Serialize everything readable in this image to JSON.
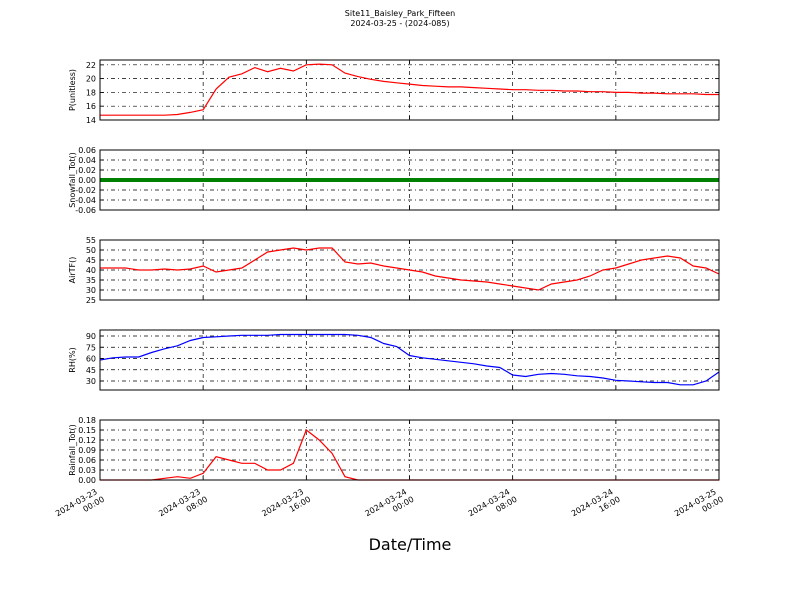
{
  "title": "Site11_Baisley_Park_Fifteen",
  "subtitle": "2024-03-25 - (2024-085)",
  "xlabel": "Date/Time",
  "xlim": [
    "2024-03-23 00:00",
    "2024-03-25 00:00"
  ],
  "xticks": [
    "2024-03-23 00:00",
    "2024-03-23 08:00",
    "2024-03-23 16:00",
    "2024-03-24 00:00",
    "2024-03-24 08:00",
    "2024-03-24 16:00",
    "2024-03-25 00:00"
  ],
  "grid": true,
  "x": [
    "2024-03-23 00:00",
    "2024-03-23 01:00",
    "2024-03-23 02:00",
    "2024-03-23 03:00",
    "2024-03-23 04:00",
    "2024-03-23 05:00",
    "2024-03-23 06:00",
    "2024-03-23 07:00",
    "2024-03-23 08:00",
    "2024-03-23 09:00",
    "2024-03-23 10:00",
    "2024-03-23 11:00",
    "2024-03-23 12:00",
    "2024-03-23 13:00",
    "2024-03-23 14:00",
    "2024-03-23 15:00",
    "2024-03-23 16:00",
    "2024-03-23 17:00",
    "2024-03-23 18:00",
    "2024-03-23 19:00",
    "2024-03-23 20:00",
    "2024-03-23 21:00",
    "2024-03-23 22:00",
    "2024-03-23 23:00",
    "2024-03-24 00:00",
    "2024-03-24 01:00",
    "2024-03-24 02:00",
    "2024-03-24 03:00",
    "2024-03-24 04:00",
    "2024-03-24 05:00",
    "2024-03-24 06:00",
    "2024-03-24 07:00",
    "2024-03-24 08:00",
    "2024-03-24 09:00",
    "2024-03-24 10:00",
    "2024-03-24 11:00",
    "2024-03-24 12:00",
    "2024-03-24 13:00",
    "2024-03-24 14:00",
    "2024-03-24 15:00",
    "2024-03-24 16:00",
    "2024-03-24 17:00",
    "2024-03-24 18:00",
    "2024-03-24 19:00",
    "2024-03-24 20:00",
    "2024-03-24 21:00",
    "2024-03-24 22:00",
    "2024-03-24 23:00",
    "2024-03-25 00:00"
  ],
  "chart_data": [
    {
      "type": "line",
      "ylabel": "P(unitless)",
      "ylim": [
        14,
        22.7
      ],
      "yticks": [
        14,
        16,
        18,
        20,
        22
      ],
      "series": [
        {
          "color": "#ff0000",
          "values": [
            14.7,
            14.7,
            14.7,
            14.7,
            14.7,
            14.7,
            14.8,
            15.1,
            15.5,
            18.5,
            20.2,
            20.7,
            21.6,
            21.0,
            21.5,
            21.1,
            22.0,
            22.1,
            22.0,
            20.8,
            20.3,
            19.9,
            19.6,
            19.4,
            19.2,
            19.0,
            18.9,
            18.8,
            18.8,
            18.7,
            18.6,
            18.5,
            18.4,
            18.4,
            18.3,
            18.3,
            18.2,
            18.2,
            18.1,
            18.1,
            18.0,
            18.0,
            17.9,
            17.9,
            17.8,
            17.8,
            17.8,
            17.7,
            17.7
          ]
        }
      ]
    },
    {
      "type": "line",
      "ylabel": "Snowfall_Tot()",
      "ylim": [
        -0.06,
        0.06
      ],
      "yticks": [
        -0.06,
        -0.04,
        -0.02,
        {
          "value": 0,
          "label": "0.00"
        },
        0.02,
        0.04,
        0.06
      ],
      "series": [
        {
          "color": "#008000",
          "values": [
            0,
            0,
            0,
            0,
            0,
            0,
            0,
            0,
            0,
            0,
            0,
            0,
            0,
            0,
            0,
            0,
            0,
            0,
            0,
            0,
            0,
            0,
            0,
            0,
            0,
            0,
            0,
            0,
            0,
            0,
            0,
            0,
            0,
            0,
            0,
            0,
            0,
            0,
            0,
            0,
            0,
            0,
            0,
            0,
            0,
            0,
            0,
            0,
            0
          ]
        }
      ]
    },
    {
      "type": "line",
      "ylabel": "AirTF()",
      "ylim": [
        25,
        55
      ],
      "yticks": [
        25,
        30,
        35,
        40,
        45,
        50,
        55
      ],
      "series": [
        {
          "color": "#ff0000",
          "values": [
            41,
            41,
            41,
            40,
            40,
            40.5,
            40,
            40.5,
            42,
            39,
            40,
            41,
            45,
            49,
            50,
            51,
            50,
            51,
            51,
            44,
            43,
            43.5,
            42,
            41,
            40,
            39,
            37,
            36,
            35,
            34.5,
            34,
            33,
            32,
            31,
            30,
            33,
            34,
            35,
            37,
            40,
            41,
            43,
            45,
            46,
            47,
            46,
            42,
            41,
            38
          ]
        }
      ]
    },
    {
      "type": "line",
      "ylabel": "RH(%)",
      "ylim": [
        18,
        98
      ],
      "yticks": [
        30,
        45,
        60,
        75,
        90
      ],
      "series": [
        {
          "color": "#0000ff",
          "values": [
            58,
            61,
            62,
            62,
            68,
            73,
            77,
            84,
            88,
            89,
            90,
            91,
            91,
            91,
            92,
            92,
            92,
            92,
            92,
            92,
            91,
            88,
            80,
            76,
            64,
            61,
            59,
            57,
            55,
            53,
            50,
            48,
            38,
            36,
            39,
            40,
            39,
            37,
            36,
            34,
            31,
            30,
            29,
            28,
            28,
            25,
            25,
            30,
            42
          ]
        }
      ]
    },
    {
      "type": "line",
      "ylabel": "Rainfall_Tot()",
      "ylim": [
        0,
        0.18
      ],
      "yticks": [
        {
          "value": 0,
          "label": "0.00"
        },
        0.03,
        0.06,
        0.09,
        0.12,
        0.15,
        0.18
      ],
      "series": [
        {
          "color": "#ff0000",
          "values": [
            0,
            0,
            0,
            0,
            0,
            0.005,
            0.01,
            0.005,
            0.02,
            0.07,
            0.06,
            0.05,
            0.05,
            0.03,
            0.03,
            0.05,
            0.15,
            0.12,
            0.08,
            0.01,
            0,
            0,
            0,
            0,
            0,
            0,
            0,
            0,
            0,
            0,
            0,
            0,
            0,
            0,
            0,
            0,
            0,
            0,
            0,
            0,
            0,
            0,
            0,
            0,
            0,
            0,
            0,
            0,
            0
          ]
        }
      ]
    }
  ]
}
